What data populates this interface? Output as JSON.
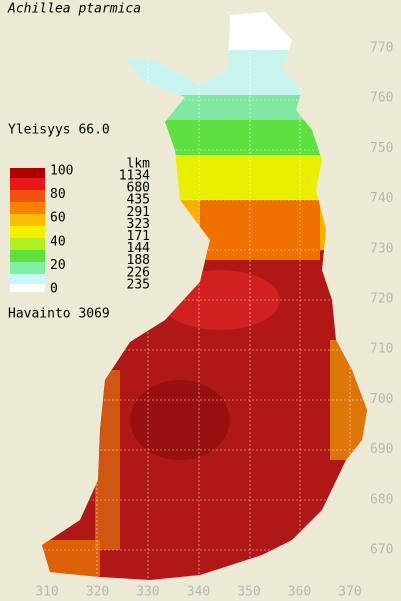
{
  "title": "Achillea ptarmica",
  "frequency": "Yleisyys  66.0",
  "legend": {
    "scale": [
      "100",
      "80",
      "60",
      "40",
      "20",
      "0"
    ],
    "count_header": "lkm",
    "counts": [
      "1134",
      "680",
      "435",
      "291",
      "323",
      "171",
      "144",
      "188",
      "226",
      "235"
    ]
  },
  "observations": "Havainto 3069",
  "axes": {
    "y": [
      "770",
      "760",
      "750",
      "740",
      "730",
      "720",
      "710",
      "700",
      "690",
      "680",
      "670"
    ],
    "x": [
      "310",
      "320",
      "330",
      "340",
      "350",
      "360",
      "370"
    ]
  }
}
